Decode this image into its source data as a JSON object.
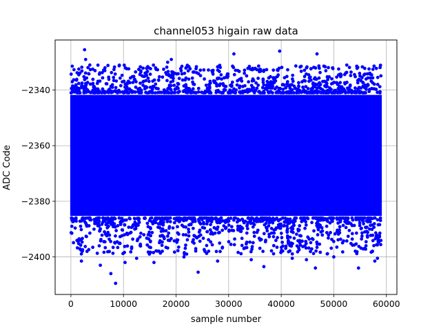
{
  "chart_data": {
    "type": "scatter",
    "title": "channel053 higain raw data",
    "xlabel": "sample number",
    "ylabel": "ADC Code",
    "xlim": [
      -3000,
      62000
    ],
    "ylim": [
      -2413.5,
      -2322
    ],
    "xticks": [
      0,
      10000,
      20000,
      30000,
      40000,
      50000,
      60000
    ],
    "xtick_labels": [
      "0",
      "10000",
      "20000",
      "30000",
      "40000",
      "50000",
      "60000"
    ],
    "yticks": [
      -2400,
      -2380,
      -2360,
      -2340
    ],
    "ytick_labels": [
      "−2400",
      "−2380",
      "−2360",
      "−2340"
    ],
    "grid": true,
    "marker_color": "#0000ff",
    "x_range": [
      0,
      59000
    ],
    "series": [
      {
        "band": {
          "x_start": 0,
          "x_end": 59000,
          "dense_min": -2386,
          "dense_max": -2341,
          "mean": -2364,
          "std": 8
        },
        "outliers": [
          {
            "x": 2600,
            "y": -2325.5
          },
          {
            "x": 2800,
            "y": -2329
          },
          {
            "x": 3600,
            "y": -2331
          },
          {
            "x": 1500,
            "y": -2334.5
          },
          {
            "x": 31000,
            "y": -2327
          },
          {
            "x": 39700,
            "y": -2326
          },
          {
            "x": 46800,
            "y": -2327
          },
          {
            "x": 19100,
            "y": -2329
          },
          {
            "x": 18400,
            "y": -2330
          },
          {
            "x": 7600,
            "y": -2406
          },
          {
            "x": 8500,
            "y": -2409.5
          },
          {
            "x": 24200,
            "y": -2405.5
          },
          {
            "x": 46500,
            "y": -2404
          },
          {
            "x": 54700,
            "y": -2404
          },
          {
            "x": 36700,
            "y": -2403.5
          },
          {
            "x": 2000,
            "y": -2401.5
          },
          {
            "x": 5600,
            "y": -2403
          },
          {
            "x": 10300,
            "y": -2402
          },
          {
            "x": 15800,
            "y": -2402
          },
          {
            "x": 21500,
            "y": -2400
          },
          {
            "x": 27900,
            "y": -2401.5
          },
          {
            "x": 57800,
            "y": -2401.5
          },
          {
            "x": 58300,
            "y": -2400.5
          },
          {
            "x": 34300,
            "y": -2401
          },
          {
            "x": 44800,
            "y": -2401
          },
          {
            "x": 50000,
            "y": -2400
          },
          {
            "x": 42100,
            "y": -2400.5
          },
          {
            "x": 12500,
            "y": -2400.5
          }
        ]
      }
    ]
  }
}
